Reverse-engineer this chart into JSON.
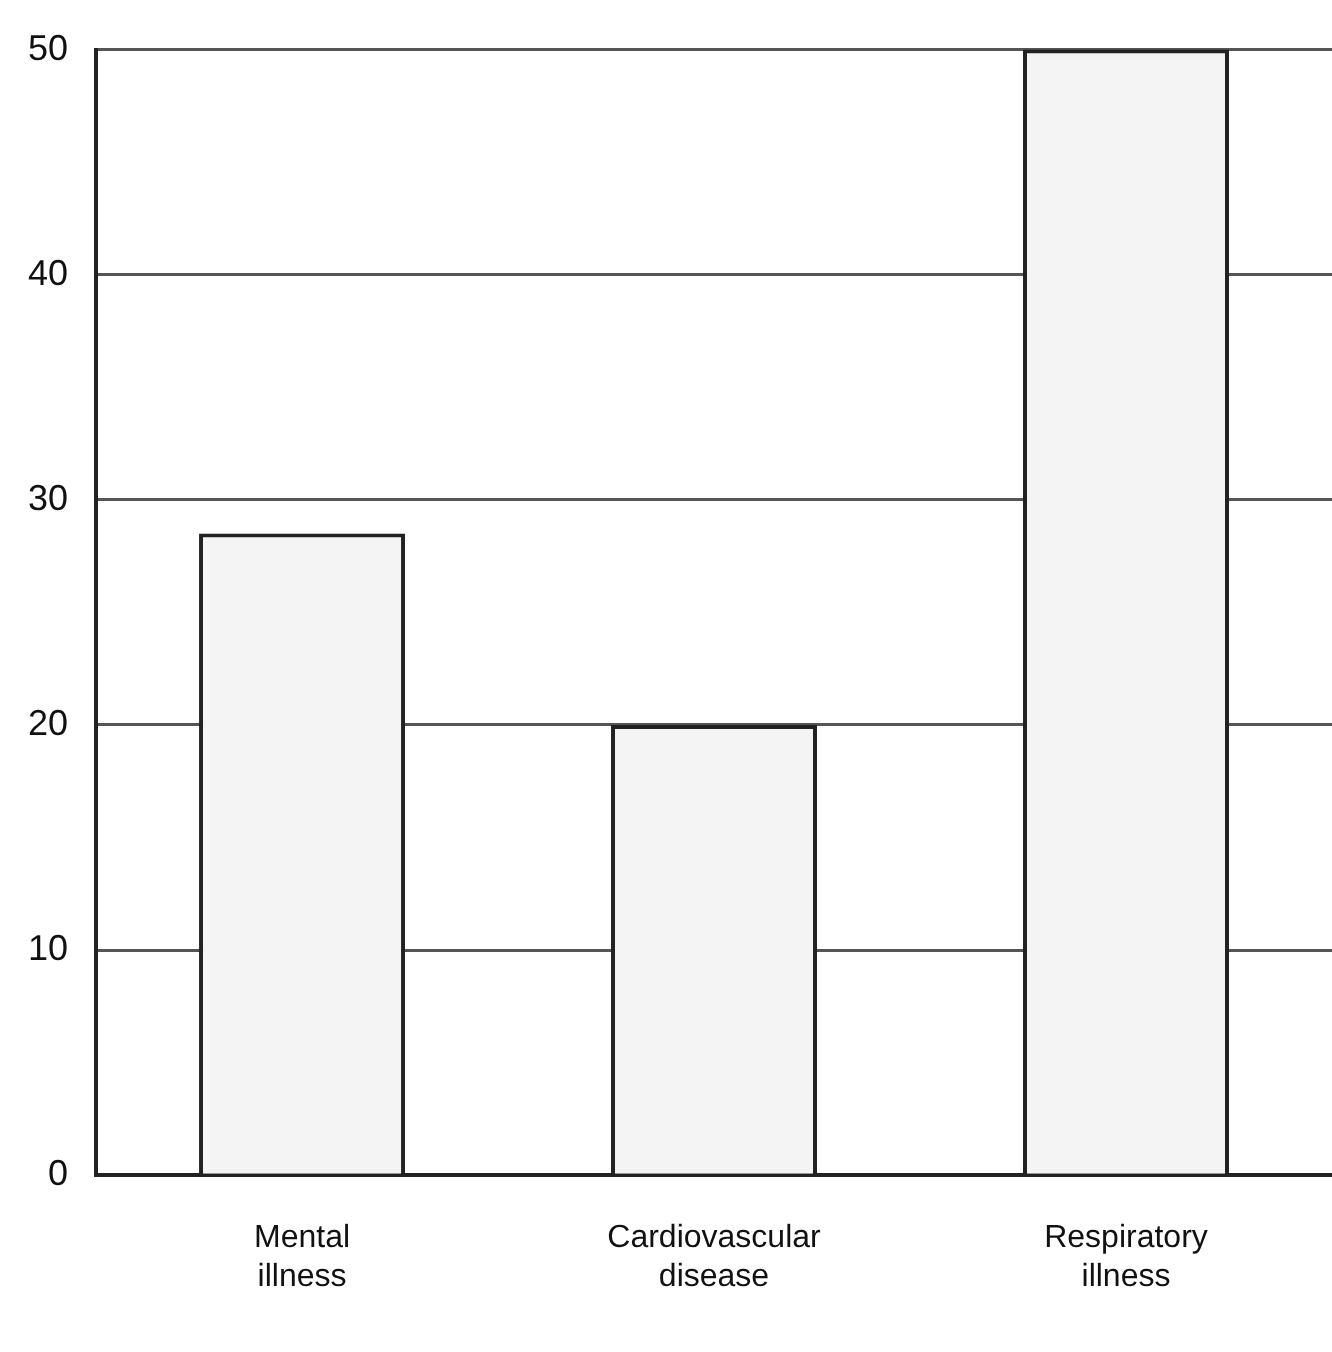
{
  "chart_data": {
    "type": "bar",
    "categories": [
      "Mental illness",
      "Cardiovascular disease",
      "Respiratory illness"
    ],
    "values": [
      28.5,
      20,
      50
    ],
    "color": "#f4f4f4",
    "ylim": [
      0,
      50
    ],
    "yticks": [
      0,
      10,
      20,
      30,
      40,
      50
    ],
    "grid": "y"
  }
}
